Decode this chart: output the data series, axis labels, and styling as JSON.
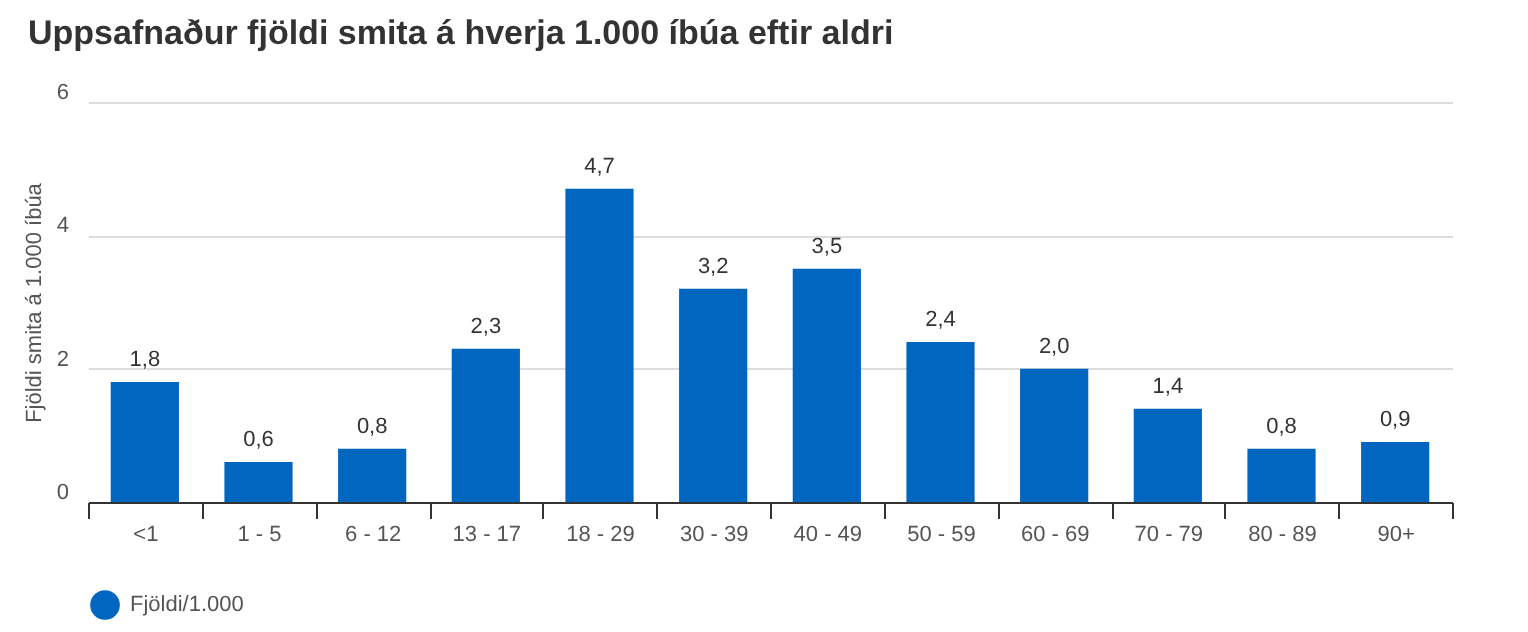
{
  "chart_data": {
    "type": "bar",
    "title": "Uppsafnaður fjöldi smita á hverja 1.000 íbúa eftir aldri",
    "ylabel": "Fjöldi smita á 1.000 íbúa",
    "categories": [
      "<1",
      "1 - 5",
      "6 - 12",
      "13 - 17",
      "18 - 29",
      "30 - 39",
      "40 - 49",
      "50 - 59",
      "60 - 69",
      "70 - 79",
      "80 - 89",
      "90+"
    ],
    "series": [
      {
        "name": "Fjöldi/1.000",
        "color": "#0066c0",
        "values": [
          1.8,
          0.6,
          0.8,
          2.3,
          4.7,
          3.2,
          3.5,
          2.4,
          2.0,
          1.4,
          0.8,
          0.9
        ],
        "value_labels": [
          "1,8",
          "0,6",
          "0,8",
          "2,3",
          "4,7",
          "3,2",
          "3,5",
          "2,4",
          "2,0",
          "1,4",
          "0,8",
          "0,9"
        ]
      }
    ],
    "ylim": [
      0,
      6
    ],
    "yticks": [
      0,
      2,
      4,
      6
    ],
    "grid": "y",
    "legend": "bottom"
  }
}
